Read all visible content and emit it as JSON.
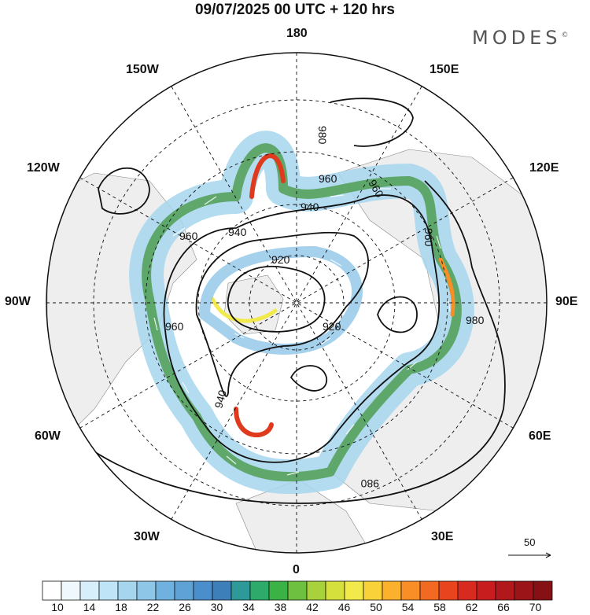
{
  "title": "09/07/2025  00 UTC  + 120 hrs",
  "brand": {
    "name": "MODES",
    "mark": "©"
  },
  "map": {
    "projection": "north-polar-stereographic",
    "longitude_labels": {
      "top": "180",
      "bottom": "0",
      "left": "90W",
      "right": "90E",
      "upper_left_1": "150W",
      "upper_left_2": "120W",
      "upper_right_1": "150E",
      "upper_right_2": "120E",
      "lower_left_1": "60W",
      "lower_left_2": "30W",
      "lower_right_1": "60E",
      "lower_right_2": "30E"
    },
    "contour_labels": [
      "980",
      "960",
      "960",
      "940",
      "920",
      "940",
      "960",
      "960",
      "920",
      "940",
      "980",
      "960",
      "980"
    ],
    "reference_vector": "50",
    "colors": {
      "land": "#eeeeee",
      "ocean": "#ffffff",
      "jet_low": "#a6d6ee",
      "jet_mid": "#4a9a4a",
      "jet_high": "#e03a1e"
    }
  },
  "colorbar": {
    "ticks": [
      "10",
      "14",
      "18",
      "22",
      "26",
      "30",
      "34",
      "38",
      "42",
      "46",
      "50",
      "54",
      "58",
      "62",
      "66",
      "70"
    ],
    "colors": [
      "#ffffff",
      "#eef8fd",
      "#d7eefb",
      "#bfe3f7",
      "#a6d6ee",
      "#8ec6e8",
      "#6fb2df",
      "#5ea2d6",
      "#4a8fcb",
      "#3d7fb9",
      "#2d9a99",
      "#2eab6a",
      "#3bb246",
      "#6dc040",
      "#a7d23c",
      "#d6e03c",
      "#f2e94a",
      "#f9d23a",
      "#fbb12c",
      "#f98d26",
      "#f26a22",
      "#e8441d",
      "#d92a1f",
      "#c71d1e",
      "#b0181b",
      "#9a1418",
      "#861114"
    ]
  }
}
